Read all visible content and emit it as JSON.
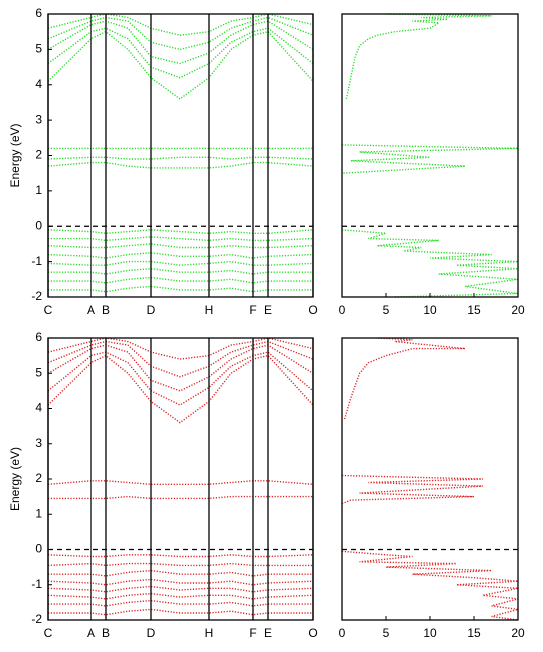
{
  "chart_data": [
    {
      "type": "line",
      "ylabel": "Energy (eV)",
      "line_style": "dotted",
      "hline": 0,
      "grid_x": true,
      "xlim": [
        0,
        265
      ],
      "ylim": [
        -2,
        6
      ],
      "yticks": [
        -2,
        -1,
        0,
        1,
        2,
        3,
        4,
        5,
        6
      ],
      "xticks": [
        {
          "value": 0,
          "label": "C"
        },
        {
          "value": 43,
          "label": "A"
        },
        {
          "value": 58,
          "label": "B"
        },
        {
          "value": 103,
          "label": "D"
        },
        {
          "value": 161,
          "label": "H"
        },
        {
          "value": 205,
          "label": "F"
        },
        {
          "value": 220,
          "label": "E"
        },
        {
          "value": 265,
          "label": "O"
        }
      ],
      "x": [
        0,
        43,
        58,
        80,
        103,
        132,
        161,
        183,
        205,
        220,
        265
      ],
      "series": [
        {
          "color": "#22dd22",
          "values": [
            4.1,
            5.3,
            5.5,
            5.0,
            4.2,
            3.6,
            4.2,
            5.0,
            5.4,
            5.5,
            4.1
          ]
        },
        {
          "color": "#22dd22",
          "values": [
            4.6,
            5.5,
            5.6,
            5.3,
            4.5,
            4.2,
            4.6,
            5.2,
            5.5,
            5.6,
            4.6
          ]
        },
        {
          "color": "#22dd22",
          "values": [
            5.0,
            5.7,
            5.8,
            5.6,
            4.8,
            4.6,
            4.9,
            5.4,
            5.7,
            5.8,
            5.0
          ]
        },
        {
          "color": "#22dd22",
          "values": [
            5.3,
            5.8,
            5.9,
            5.8,
            5.2,
            5.0,
            5.2,
            5.6,
            5.8,
            5.9,
            5.4
          ]
        },
        {
          "color": "#22dd22",
          "values": [
            5.6,
            5.9,
            6.0,
            5.9,
            5.6,
            5.4,
            5.5,
            5.8,
            5.9,
            6.0,
            5.7
          ]
        },
        {
          "color": "#22dd22",
          "values": [
            2.2,
            2.2,
            2.2,
            2.2,
            2.2,
            2.2,
            2.2,
            2.2,
            2.2,
            2.2,
            2.2
          ]
        },
        {
          "color": "#22dd22",
          "values": [
            1.9,
            1.95,
            1.95,
            1.9,
            1.9,
            1.95,
            1.95,
            1.9,
            1.95,
            1.95,
            1.9
          ]
        },
        {
          "color": "#22dd22",
          "values": [
            1.7,
            1.8,
            1.8,
            1.7,
            1.65,
            1.65,
            1.65,
            1.7,
            1.8,
            1.8,
            1.7
          ]
        },
        {
          "color": "#22dd22",
          "values": [
            -0.1,
            -0.15,
            -0.2,
            -0.15,
            -0.1,
            -0.15,
            -0.2,
            -0.15,
            -0.2,
            -0.2,
            -0.1
          ]
        },
        {
          "color": "#22dd22",
          "values": [
            -0.35,
            -0.35,
            -0.4,
            -0.35,
            -0.3,
            -0.35,
            -0.4,
            -0.35,
            -0.4,
            -0.4,
            -0.35
          ]
        },
        {
          "color": "#22dd22",
          "values": [
            -0.55,
            -0.6,
            -0.6,
            -0.55,
            -0.5,
            -0.6,
            -0.6,
            -0.55,
            -0.6,
            -0.6,
            -0.55
          ]
        },
        {
          "color": "#22dd22",
          "values": [
            -0.8,
            -0.85,
            -0.9,
            -0.8,
            -0.75,
            -0.85,
            -0.85,
            -0.8,
            -0.9,
            -0.85,
            -0.8
          ]
        },
        {
          "color": "#22dd22",
          "values": [
            -1.05,
            -1.1,
            -1.1,
            -1.0,
            -1.0,
            -1.1,
            -1.05,
            -1.0,
            -1.1,
            -1.1,
            -1.05
          ]
        },
        {
          "color": "#22dd22",
          "values": [
            -1.3,
            -1.3,
            -1.35,
            -1.25,
            -1.2,
            -1.3,
            -1.3,
            -1.25,
            -1.35,
            -1.3,
            -1.3
          ]
        },
        {
          "color": "#22dd22",
          "values": [
            -1.55,
            -1.55,
            -1.6,
            -1.5,
            -1.45,
            -1.55,
            -1.55,
            -1.5,
            -1.6,
            -1.55,
            -1.55
          ]
        },
        {
          "color": "#22dd22",
          "values": [
            -1.8,
            -1.8,
            -1.85,
            -1.75,
            -1.7,
            -1.8,
            -1.8,
            -1.75,
            -1.85,
            -1.8,
            -1.8
          ]
        }
      ]
    },
    {
      "type": "line",
      "orientation": "horizontal",
      "line_style": "dotted",
      "hline": 0,
      "xlim": [
        0,
        20
      ],
      "xticks": [
        0,
        5,
        10,
        15,
        20
      ],
      "ylim": [
        -2,
        6
      ],
      "series": [
        {
          "color": "#22dd22",
          "y": [
            3.6,
            4.2,
            4.8,
            5.1,
            5.3,
            5.4,
            5.5,
            5.6,
            5.75,
            5.8,
            5.85,
            5.9,
            5.95,
            6.0,
            null,
            2.3,
            2.2,
            2.1,
            1.95,
            1.85,
            1.7,
            1.5,
            null,
            -0.1,
            -0.2,
            -0.35,
            -0.4,
            -0.55,
            -0.6,
            -0.7,
            -0.8,
            -0.9,
            -1.0,
            -1.1,
            -1.2,
            -1.35,
            -1.5,
            -1.7,
            -1.9,
            -2.0
          ],
          "values": [
            0.5,
            1,
            1.5,
            2,
            3,
            4,
            6,
            10,
            11,
            8,
            12,
            9,
            17,
            5,
            null,
            0,
            20,
            2,
            10,
            1,
            14,
            0,
            null,
            0,
            5,
            3,
            11,
            4,
            9,
            7,
            17,
            10,
            20,
            13,
            20,
            11,
            20,
            14,
            20,
            6
          ]
        }
      ]
    },
    {
      "type": "line",
      "ylabel": "Energy (eV)",
      "line_style": "dotted",
      "hline": 0,
      "grid_x": true,
      "xlim": [
        0,
        265
      ],
      "ylim": [
        -2,
        6
      ],
      "yticks": [
        -2,
        -1,
        0,
        1,
        2,
        3,
        4,
        5,
        6
      ],
      "xticks": [
        {
          "value": 0,
          "label": "C"
        },
        {
          "value": 43,
          "label": "A"
        },
        {
          "value": 58,
          "label": "B"
        },
        {
          "value": 103,
          "label": "D"
        },
        {
          "value": 161,
          "label": "H"
        },
        {
          "value": 205,
          "label": "F"
        },
        {
          "value": 220,
          "label": "E"
        },
        {
          "value": 265,
          "label": "O"
        }
      ],
      "x": [
        0,
        43,
        58,
        80,
        103,
        132,
        161,
        183,
        205,
        220,
        265
      ],
      "series": [
        {
          "color": "#dd2222",
          "values": [
            4.1,
            5.3,
            5.5,
            5.0,
            4.2,
            3.6,
            4.2,
            5.0,
            5.4,
            5.5,
            4.1
          ]
        },
        {
          "color": "#dd2222",
          "values": [
            4.5,
            5.5,
            5.6,
            5.3,
            4.5,
            4.1,
            4.6,
            5.2,
            5.5,
            5.6,
            4.5
          ]
        },
        {
          "color": "#dd2222",
          "values": [
            5.0,
            5.7,
            5.8,
            5.6,
            4.8,
            4.5,
            4.9,
            5.4,
            5.7,
            5.8,
            5.0
          ]
        },
        {
          "color": "#dd2222",
          "values": [
            5.3,
            5.8,
            5.9,
            5.8,
            5.2,
            4.9,
            5.2,
            5.6,
            5.8,
            5.9,
            5.4
          ]
        },
        {
          "color": "#dd2222",
          "values": [
            5.6,
            5.9,
            6.0,
            5.9,
            5.6,
            5.4,
            5.5,
            5.8,
            5.9,
            6.0,
            5.7
          ]
        },
        {
          "color": "#dd2222",
          "values": [
            1.85,
            1.95,
            1.95,
            1.9,
            1.85,
            1.85,
            1.85,
            1.9,
            1.95,
            1.95,
            1.85
          ]
        },
        {
          "color": "#dd2222",
          "values": [
            1.45,
            1.45,
            1.45,
            1.5,
            1.45,
            1.45,
            1.45,
            1.5,
            1.5,
            1.5,
            1.5
          ]
        },
        {
          "color": "#dd2222",
          "values": [
            -0.15,
            -0.2,
            -0.2,
            -0.15,
            -0.15,
            -0.2,
            -0.2,
            -0.15,
            -0.2,
            -0.2,
            -0.15
          ]
        },
        {
          "color": "#dd2222",
          "values": [
            -0.45,
            -0.4,
            -0.45,
            -0.4,
            -0.4,
            -0.45,
            -0.45,
            -0.4,
            -0.45,
            -0.45,
            -0.45
          ]
        },
        {
          "color": "#dd2222",
          "values": [
            -0.7,
            -0.7,
            -0.75,
            -0.65,
            -0.6,
            -0.7,
            -0.7,
            -0.65,
            -0.75,
            -0.7,
            -0.7
          ]
        },
        {
          "color": "#dd2222",
          "values": [
            -0.9,
            -0.95,
            -1.0,
            -0.9,
            -0.85,
            -0.95,
            -0.95,
            -0.9,
            -1.0,
            -0.95,
            -0.9
          ]
        },
        {
          "color": "#dd2222",
          "values": [
            -1.1,
            -1.15,
            -1.2,
            -1.1,
            -1.05,
            -1.15,
            -1.1,
            -1.1,
            -1.2,
            -1.15,
            -1.1
          ]
        },
        {
          "color": "#dd2222",
          "values": [
            -1.3,
            -1.35,
            -1.4,
            -1.3,
            -1.25,
            -1.35,
            -1.3,
            -1.3,
            -1.4,
            -1.35,
            -1.3
          ]
        },
        {
          "color": "#dd2222",
          "values": [
            -1.55,
            -1.55,
            -1.6,
            -1.5,
            -1.45,
            -1.55,
            -1.55,
            -1.5,
            -1.6,
            -1.55,
            -1.55
          ]
        },
        {
          "color": "#dd2222",
          "values": [
            -1.8,
            -1.8,
            -1.85,
            -1.75,
            -1.7,
            -1.8,
            -1.8,
            -1.75,
            -1.85,
            -1.8,
            -1.8
          ]
        }
      ]
    },
    {
      "type": "line",
      "orientation": "horizontal",
      "line_style": "dotted",
      "hline": 0,
      "xlim": [
        0,
        20
      ],
      "xticks": [
        0,
        5,
        10,
        15,
        20
      ],
      "ylim": [
        -2,
        6
      ],
      "series": [
        {
          "color": "#dd2222",
          "y": [
            3.7,
            4.3,
            5.0,
            5.3,
            5.5,
            5.7,
            5.7,
            5.8,
            5.9,
            5.95,
            6.0,
            null,
            2.1,
            2.0,
            1.9,
            1.8,
            1.6,
            1.5,
            1.4,
            1.3,
            null,
            -0.05,
            -0.15,
            -0.2,
            -0.35,
            -0.4,
            -0.5,
            -0.6,
            -0.7,
            -0.8,
            -0.9,
            -1.0,
            -1.1,
            -1.3,
            -1.4,
            -1.6,
            -1.7,
            -1.9,
            -2.0
          ],
          "values": [
            0.3,
            1,
            2,
            3,
            5,
            8,
            14,
            10,
            6,
            8,
            4,
            null,
            0,
            16,
            3,
            16,
            2,
            15,
            1,
            0,
            null,
            0,
            5,
            8,
            2,
            13,
            5,
            17,
            8,
            15,
            20,
            13,
            20,
            16,
            20,
            17,
            20,
            17,
            20
          ]
        }
      ]
    }
  ]
}
